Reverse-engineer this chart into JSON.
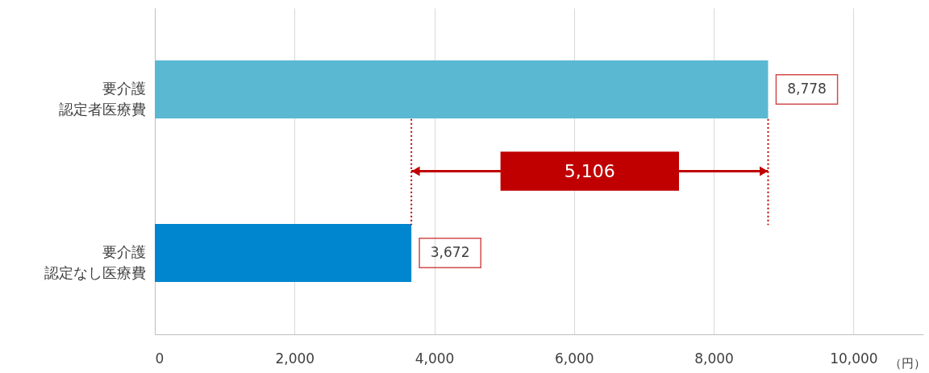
{
  "chart_data": {
    "type": "bar",
    "orientation": "horizontal",
    "categories": [
      "要介護認定者医療費",
      "要介護認定なし医療費"
    ],
    "values": [
      8778,
      3672
    ],
    "value_labels": [
      "8,778",
      "3,672"
    ],
    "colors": [
      "#5bb8d2",
      "#0086cf"
    ],
    "xlim": [
      0,
      11000
    ],
    "xticks": [
      {
        "value": 0,
        "label": "0"
      },
      {
        "value": 2000,
        "label": "2,000"
      },
      {
        "value": 4000,
        "label": "4,000"
      },
      {
        "value": 6000,
        "label": "6,000"
      },
      {
        "value": 8000,
        "label": "8,000"
      },
      {
        "value": 10000,
        "label": "10,000"
      }
    ],
    "xlabel": "（円）",
    "grid": "x",
    "ref_lines": [
      {
        "axis": "x",
        "value": 3672,
        "color": "#c00000",
        "line_style": "dotted"
      },
      {
        "axis": "x",
        "value": 8778,
        "color": "#c00000",
        "line_style": "dotted"
      }
    ],
    "annotations": [
      "5,106"
    ]
  }
}
